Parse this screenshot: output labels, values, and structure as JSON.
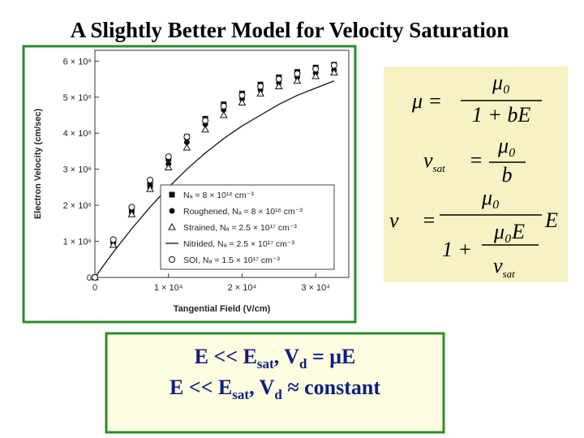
{
  "title": "A Slightly Better  Model for Velocity Saturation",
  "chart_data": {
    "type": "line",
    "xlabel": "Tangential Field (V/cm)",
    "ylabel": "Electron Velocity (cm/sec)",
    "x": [
      0,
      2500,
      5000,
      7500,
      10000,
      12500,
      15000,
      17500,
      20000,
      22500,
      25000,
      27500,
      30000,
      32500
    ],
    "xlim": [
      0,
      34500
    ],
    "ylim": [
      0,
      6300000
    ],
    "xticks": [
      0,
      {
        "value": 10000,
        "label": "1 × 10⁴"
      },
      {
        "value": 20000,
        "label": "2 × 10⁴"
      },
      {
        "value": 30000,
        "label": "3 × 10⁴"
      }
    ],
    "yticks": [
      0,
      {
        "value": 1000000,
        "label": "1 × 10⁶"
      },
      {
        "value": 2000000,
        "label": "2 × 10⁶"
      },
      {
        "value": 3000000,
        "label": "3 × 10⁶"
      },
      {
        "value": 4000000,
        "label": "4 × 10⁶"
      },
      {
        "value": 5000000,
        "label": "5 × 10⁶"
      },
      {
        "value": 6000000,
        "label": "6 × 10⁶"
      }
    ],
    "series": [
      {
        "name": "Nₐ = 8 × 10¹⁶ cm⁻³",
        "color": "#111111",
        "marker": "square",
        "values": [
          0,
          1000000,
          1900000,
          2600000,
          3300000,
          3900000,
          4400000,
          4800000,
          5100000,
          5350000,
          5550000,
          5700000,
          5820000,
          5900000
        ]
      },
      {
        "name": "Roughened, Nₐ = 8 × 10¹⁶ cm⁻³",
        "color": "#111111",
        "marker": "dot",
        "values": [
          0,
          950000,
          1800000,
          2500000,
          3150000,
          3750000,
          4250000,
          4650000,
          4950000,
          5200000,
          5400000,
          5550000,
          5670000,
          5750000
        ]
      },
      {
        "name": "Strained, Nₐ = 2.5 × 10¹⁷ cm⁻³",
        "color": "#111111",
        "marker": "triangle",
        "values": [
          0,
          900000,
          1750000,
          2450000,
          3050000,
          3600000,
          4100000,
          4500000,
          4850000,
          5100000,
          5300000,
          5450000,
          5580000,
          5680000
        ]
      },
      {
        "name": "Nitrided, Nₐ = 2.5 × 10¹⁷ cm⁻³",
        "color": "#111111",
        "marker": "line",
        "values": [
          0,
          700000,
          1350000,
          1950000,
          2500000,
          3000000,
          3450000,
          3850000,
          4200000,
          4500000,
          4800000,
          5050000,
          5250000,
          5450000
        ]
      },
      {
        "name": "SOI, Nₐ = 1.5 × 10¹⁷ cm⁻³",
        "color": "#111111",
        "marker": "circle",
        "values": [
          0,
          1050000,
          1950000,
          2700000,
          3350000,
          3900000,
          4350000,
          4750000,
          5050000,
          5300000,
          5500000,
          5650000,
          5780000,
          5880000
        ]
      }
    ]
  },
  "equations": [
    {
      "lhs": "μ =",
      "num": "μ₀",
      "den": "1 + bE"
    },
    {
      "lhs": "v",
      "lhs_sub": "sat",
      "eq": "=",
      "num": "μ₀",
      "den": "b"
    },
    {
      "lhs": "v",
      "eq": "=",
      "num": "μ₀",
      "den": "1 +",
      "inner_num": "μ₀E",
      "inner_den": "v",
      "inner_den_sub": "sat",
      "tail": "E"
    }
  ],
  "notes": [
    {
      "parts": [
        "E << E",
        "sat",
        ",  V",
        "d",
        " = μE"
      ]
    },
    {
      "parts": [
        "E << E",
        "sat",
        ",  V",
        "d",
        " ≈ constant"
      ]
    }
  ]
}
